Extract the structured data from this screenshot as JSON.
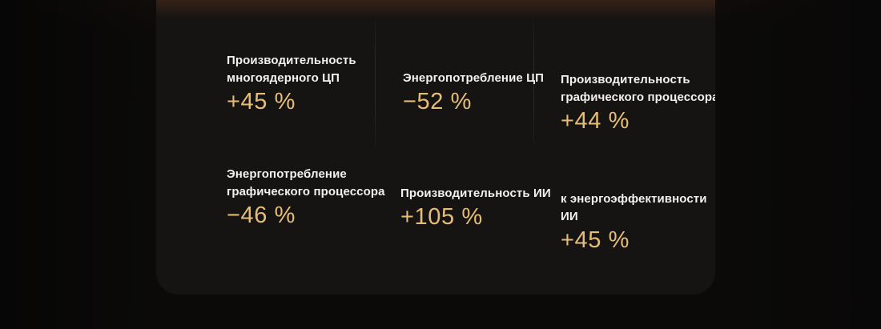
{
  "section": {
    "title": "performance-stats",
    "colors": {
      "background": "#0a0909",
      "panel": "#161413",
      "top_glow": "#8c4620",
      "divider": "#262220",
      "label_text": "#f3f1ee",
      "value_text": "#e6bd77"
    },
    "stats": [
      {
        "label": "Производительность\nмногоядерного ЦП",
        "value": "+45 %"
      },
      {
        "label": "Энергопотребление ЦП",
        "value": "−52 %"
      },
      {
        "label": "Производительность\nграфического процессора",
        "value": "+44 %"
      },
      {
        "label": "Энергопотребление\nграфического процессора",
        "value": "−46 %"
      },
      {
        "label": "Производительность ИИ",
        "value": "+105 %"
      },
      {
        "label": "к энергоэффективности\nИИ",
        "value": "+45 %"
      }
    ]
  }
}
